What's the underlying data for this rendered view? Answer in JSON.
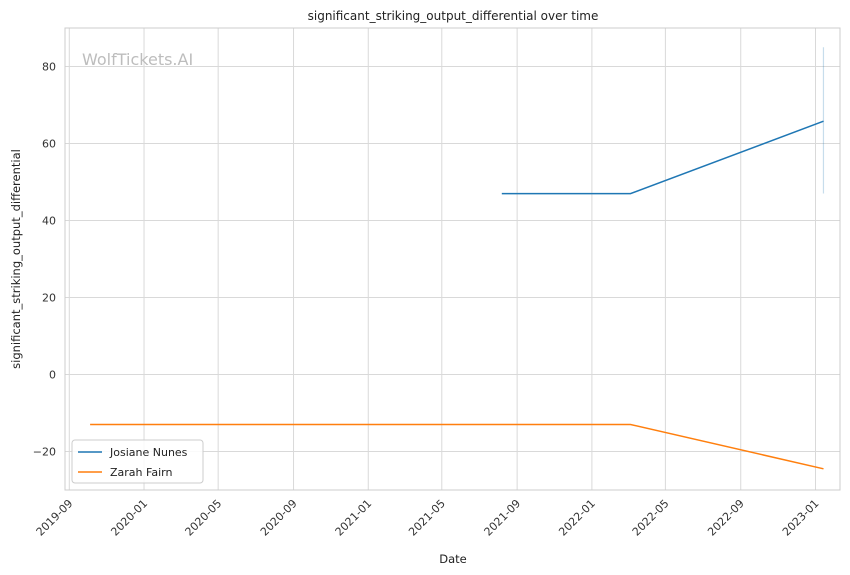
{
  "chart_data": {
    "type": "line",
    "title": "significant_striking_output_differential over time",
    "xlabel": "Date",
    "ylabel": "significant_striking_output_differential",
    "watermark": "WolfTickets.AI",
    "x_ticks": [
      "2019-09",
      "2020-01",
      "2020-05",
      "2020-09",
      "2021-01",
      "2021-05",
      "2021-09",
      "2022-01",
      "2022-05",
      "2022-09",
      "2023-01"
    ],
    "xlim": [
      "2019-08-25",
      "2023-02-10"
    ],
    "y_ticks": [
      80,
      60,
      40,
      20,
      0,
      -20
    ],
    "ylim": [
      -30,
      90
    ],
    "grid": true,
    "legend_position": "lower-left",
    "series": [
      {
        "name": "Josiane Nunes",
        "color": "#1f77b4",
        "points": [
          {
            "x": "2021-08-07",
            "y": 47
          },
          {
            "x": "2022-03-05",
            "y": 47
          },
          {
            "x": "2023-01-14",
            "y": 65.8
          }
        ],
        "error_band": {
          "x": "2023-01-14",
          "low": 47,
          "high": 85
        }
      },
      {
        "name": "Zarah Fairn",
        "color": "#ff7f0e",
        "points": [
          {
            "x": "2019-10-05",
            "y": -13
          },
          {
            "x": "2022-03-05",
            "y": -13
          },
          {
            "x": "2023-01-14",
            "y": -24.5
          }
        ]
      }
    ]
  }
}
